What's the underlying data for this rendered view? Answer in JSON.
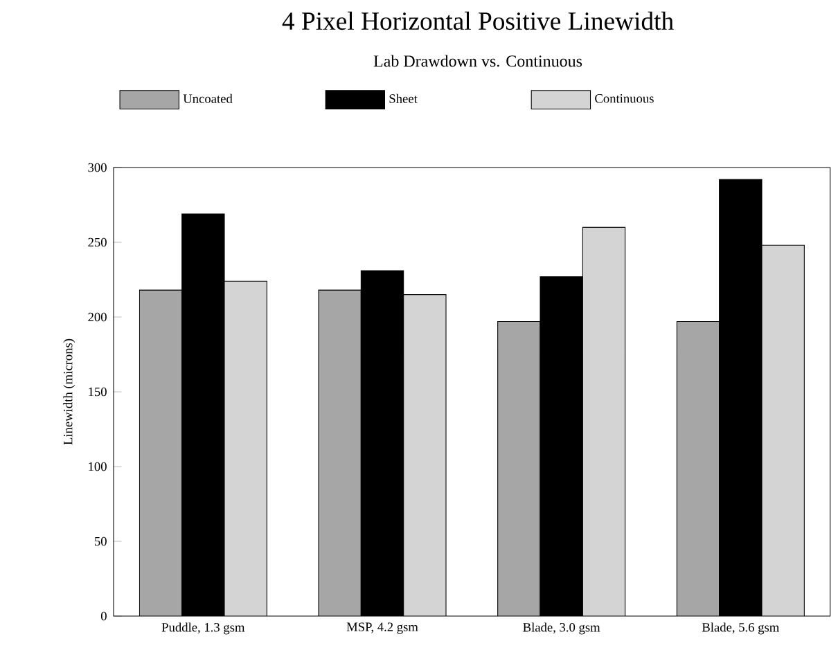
{
  "chart_data": {
    "type": "bar",
    "title": "4 Pixel Horizontal Positive Linewidth",
    "subtitle": "Lab Drawdown vs. Continuous",
    "ylabel": "Linewidth (microns)",
    "categories": [
      "Puddle, 1.3 gsm",
      "MSP, 4.2 gsm",
      "Blade, 3.0 gsm",
      "Blade, 5.6 gsm"
    ],
    "series": [
      {
        "name": "Uncoated",
        "color": "#a6a6a6",
        "values": [
          218,
          218,
          197,
          197
        ]
      },
      {
        "name": "Sheet",
        "color": "#000000",
        "values": [
          269,
          231,
          227,
          292
        ]
      },
      {
        "name": "Continuous",
        "color": "#d4d4d4",
        "values": [
          224,
          215,
          260,
          248
        ]
      }
    ],
    "ylim": [
      0,
      300
    ],
    "yticks": [
      0,
      50,
      100,
      150,
      200,
      250,
      300
    ],
    "legend": "top"
  }
}
